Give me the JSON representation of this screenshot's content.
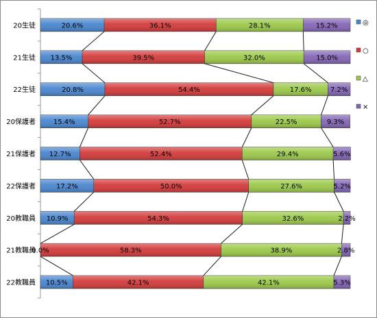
{
  "chart_data": {
    "type": "bar",
    "orientation": "horizontal",
    "stacked": "percent",
    "title": "",
    "xlabel": "",
    "ylabel": "",
    "xlim": [
      0,
      100
    ],
    "grid": false,
    "series_lines": true,
    "legend_position": "right",
    "categories": [
      "20生徒",
      "21生徒",
      "22生徒",
      "20保護者",
      "21保護者",
      "22保護者",
      "20教職員",
      "21教職員",
      "22教職員"
    ],
    "series": [
      {
        "name": "◎",
        "color": "#4a86cf",
        "values": [
          20.6,
          13.5,
          20.8,
          15.4,
          12.7,
          17.2,
          10.9,
          0.0,
          10.5
        ],
        "labels": [
          "20.6%",
          "13.5%",
          "20.8%",
          "15.4%",
          "12.7%",
          "17.2%",
          "10.9%",
          "0.0%",
          "10.5%"
        ]
      },
      {
        "name": "○",
        "color": "#d33b3b",
        "values": [
          36.1,
          39.5,
          54.4,
          52.7,
          52.4,
          50.0,
          54.3,
          58.3,
          42.1
        ],
        "labels": [
          "36.1%",
          "39.5%",
          "54.4%",
          "52.7%",
          "52.4%",
          "50.0%",
          "54.3%",
          "58.3%",
          "42.1%"
        ]
      },
      {
        "name": "△",
        "color": "#9cc94a",
        "values": [
          28.1,
          32.0,
          17.6,
          22.5,
          29.4,
          27.6,
          32.6,
          38.9,
          42.1
        ],
        "labels": [
          "28.1%",
          "32.0%",
          "17.6%",
          "22.5%",
          "29.4%",
          "27.6%",
          "32.6%",
          "38.9%",
          "42.1%"
        ]
      },
      {
        "name": "×",
        "color": "#8466b5",
        "values": [
          15.2,
          15.0,
          7.2,
          9.3,
          5.6,
          5.2,
          2.2,
          2.8,
          5.3
        ],
        "labels": [
          "15.2%",
          "15.0%",
          "7.2%",
          "9.3%",
          "5.6%",
          "5.2%",
          "2.2%",
          "2.8%",
          "5.3%"
        ]
      }
    ]
  }
}
